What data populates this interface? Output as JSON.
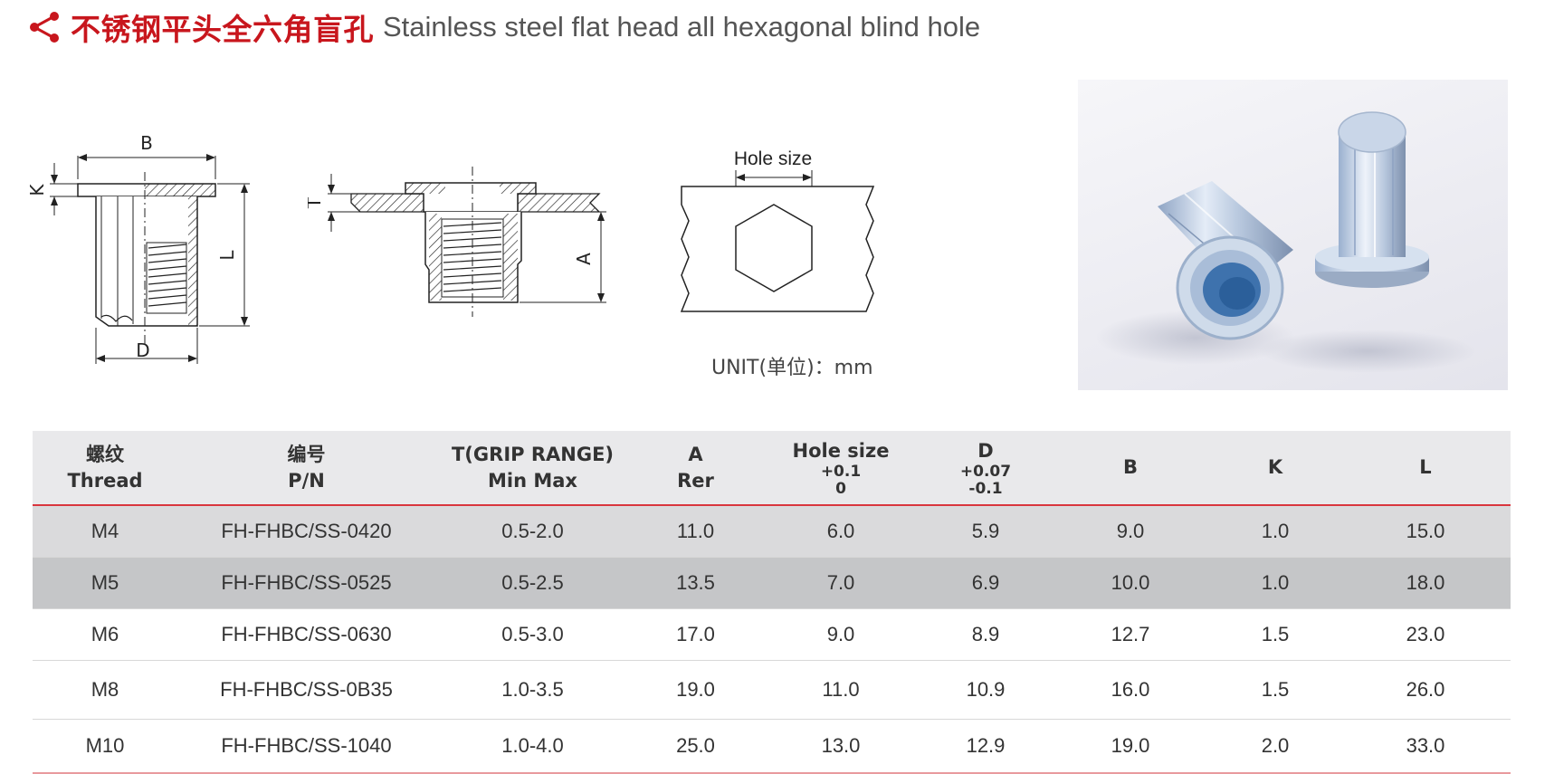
{
  "header": {
    "title_cn": "不锈钢平头全六角盲孔",
    "title_en": "Stainless steel flat head all hexagonal blind hole",
    "icon": "share-icon"
  },
  "drawings": {
    "side_view": {
      "label_b": "B",
      "label_k": "K",
      "label_l": "L",
      "label_d": "D"
    },
    "installed_view": {
      "label_t": "T",
      "label_a": "A"
    },
    "hole_view": {
      "label_hole": "Hole size"
    }
  },
  "unit_note": "UNIT(单位)：mm",
  "table": {
    "headers": [
      {
        "line1": "螺纹",
        "line2": "Thread"
      },
      {
        "line1": "编号",
        "line2": "P/N"
      },
      {
        "line1": "T(GRIP RANGE)",
        "line2": "Min Max"
      },
      {
        "line1": "A",
        "line2": "Rer"
      },
      {
        "line1": "Hole size",
        "tol_upper": "+0.1",
        "tol_lower": "0"
      },
      {
        "line1": "D",
        "tol_upper": "+0.07",
        "tol_lower": "-0.1"
      },
      {
        "line1": "B"
      },
      {
        "line1": "K"
      },
      {
        "line1": "L"
      }
    ],
    "rows": [
      [
        "M4",
        "FH-FHBC/SS-0420",
        "0.5-2.0",
        "11.0",
        "6.0",
        "5.9",
        "9.0",
        "1.0",
        "15.0"
      ],
      [
        "M5",
        "FH-FHBC/SS-0525",
        "0.5-2.5",
        "13.5",
        "7.0",
        "6.9",
        "10.0",
        "1.0",
        "18.0"
      ],
      [
        "M6",
        "FH-FHBC/SS-0630",
        "0.5-3.0",
        "17.0",
        "9.0",
        "8.9",
        "12.7",
        "1.5",
        "23.0"
      ],
      [
        "M8",
        "FH-FHBC/SS-0B35",
        "1.0-3.5",
        "19.0",
        "11.0",
        "10.9",
        "16.0",
        "1.5",
        "26.0"
      ],
      [
        "M10",
        "FH-FHBC/SS-1040",
        "1.0-4.0",
        "25.0",
        "13.0",
        "12.9",
        "19.0",
        "2.0",
        "33.0"
      ]
    ]
  },
  "colors": {
    "accent": "#c8161d",
    "header_bg": "#e9e9eb",
    "row_dark": "#c5c6c8",
    "row_light": "#dadadc"
  }
}
